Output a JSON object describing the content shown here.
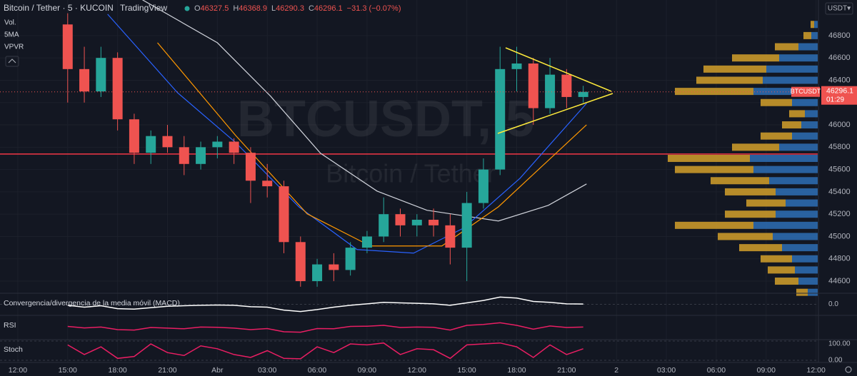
{
  "chart_data": {
    "type": "candlestick",
    "title": "Bitcoin / Tether · 5 · KUCOIN",
    "brand": "TradingView",
    "ohlc": [
      {
        "key": "O",
        "value": 46327.5
      },
      {
        "key": "H",
        "value": 46368.9
      },
      {
        "key": "L",
        "value": 46290.3
      },
      {
        "key": "C",
        "value": 46296.1
      }
    ],
    "change": "−31.3 (−0.07%)",
    "indicator_legend": [
      "Vol.",
      "5MA",
      "VPVR"
    ],
    "watermark": "BTCUSDT, 5",
    "watermark_sub": "Bitcoin / Tether",
    "currency": "USDT▾",
    "symbol_tag": "BTCUSDT",
    "last_price": 46296.1,
    "countdown": "01:29",
    "xlim": [
      -1.07,
      48.1
    ],
    "xticks": [
      {
        "value": 0,
        "label": "12:00"
      },
      {
        "value": 3,
        "label": "15:00"
      },
      {
        "value": 6,
        "label": "18:00"
      },
      {
        "value": 9,
        "label": "21:00"
      },
      {
        "value": 12,
        "label": "Abr"
      },
      {
        "value": 15,
        "label": "03:00"
      },
      {
        "value": 18,
        "label": "06:00"
      },
      {
        "value": 21,
        "label": "09:00"
      },
      {
        "value": 24,
        "label": "12:00"
      },
      {
        "value": 27,
        "label": "15:00"
      },
      {
        "value": 30,
        "label": "18:00"
      },
      {
        "value": 33,
        "label": "21:00"
      },
      {
        "value": 36,
        "label": "2"
      },
      {
        "value": 39,
        "label": "03:00"
      },
      {
        "value": 42,
        "label": "06:00"
      },
      {
        "value": 45,
        "label": "09:00"
      },
      {
        "value": 48,
        "label": "12:00"
      }
    ],
    "ylim": [
      44498,
      47119
    ],
    "yticks": [
      44600,
      44800,
      45000,
      45200,
      45400,
      45600,
      45800,
      46000,
      46200,
      46400,
      46600,
      46800
    ],
    "up_color": "#26a69a",
    "down_color": "#ef5350",
    "x": [
      3,
      4,
      5,
      6,
      7,
      8,
      9,
      10,
      11,
      12,
      13,
      14,
      15,
      16,
      17,
      18,
      19,
      20,
      21,
      22,
      23,
      24,
      25,
      26,
      27,
      28,
      29,
      30,
      31,
      32,
      33,
      34
    ],
    "open": [
      46900,
      46500,
      46300,
      46600,
      46050,
      45750,
      45900,
      45800,
      45650,
      45800,
      45850,
      45750,
      45500,
      45450,
      44950,
      44600,
      44750,
      44700,
      44900,
      45000,
      45200,
      45100,
      45150,
      45100,
      44900,
      45300,
      45600,
      46500,
      46550,
      46150,
      46450,
      46250
    ],
    "high": [
      47000,
      46700,
      46700,
      46650,
      46100,
      45950,
      46000,
      45900,
      45850,
      45900,
      45880,
      45800,
      45650,
      45500,
      45000,
      44800,
      44850,
      44950,
      45050,
      45350,
      45250,
      45200,
      45250,
      45200,
      45400,
      45700,
      46700,
      46700,
      46600,
      46600,
      46500,
      46350
    ],
    "low": [
      46200,
      46200,
      46250,
      45950,
      45650,
      45650,
      45750,
      45550,
      45600,
      45700,
      45650,
      45300,
      45350,
      44850,
      44550,
      44550,
      44600,
      44650,
      44850,
      44950,
      45000,
      45000,
      45000,
      44750,
      44600,
      45250,
      45550,
      46300,
      46000,
      46100,
      46150,
      46200
    ],
    "close": [
      46500,
      46300,
      46600,
      46050,
      45750,
      45900,
      45800,
      45650,
      45800,
      45850,
      45750,
      45500,
      45450,
      44950,
      44600,
      44750,
      44700,
      44900,
      45000,
      45200,
      45100,
      45150,
      45100,
      44900,
      45300,
      45600,
      46500,
      46550,
      46150,
      46450,
      46250,
      46296.1
    ],
    "series": [
      {
        "color": "#d1d4dc",
        "x": [
          7.5,
          12,
          15.2,
          18.2,
          21.6,
          24.6,
          28.9,
          31.9,
          34.2
        ],
        "values": [
          47120,
          46736,
          46257,
          45746,
          45407,
          45235,
          45139,
          45279,
          45471
        ]
      },
      {
        "color": "#2962ff",
        "x": [
          5.4,
          9.6,
          13.1,
          16.9,
          20.4,
          23.8,
          26.8,
          30.2,
          34.2
        ],
        "values": [
          46992,
          46289,
          45842,
          45266,
          44883,
          44851,
          45075,
          45522,
          46193
        ]
      },
      {
        "color": "#ff9800",
        "x": [
          8.4,
          13.1,
          17.4,
          21.2,
          25.5,
          28.9,
          34.2
        ],
        "values": [
          46736,
          45905,
          45203,
          44915,
          44915,
          45266,
          46001
        ]
      }
    ],
    "hline": {
      "value": 45739,
      "color": "#f23645"
    },
    "volume_profile": {
      "levels": [
        44500,
        44600,
        44700,
        44800,
        44900,
        45000,
        45100,
        45200,
        45300,
        45400,
        45500,
        45600,
        45700,
        45800,
        45900,
        46000,
        46100,
        46200,
        46300,
        46400,
        46500,
        46600,
        46700,
        46800,
        46900
      ],
      "up": [
        14,
        27,
        32,
        36,
        50,
        63,
        90,
        59,
        45,
        59,
        68,
        90,
        95,
        54,
        36,
        23,
        18,
        36,
        90,
        77,
        72,
        54,
        27,
        9,
        5
      ],
      "down": [
        16,
        33,
        38,
        44,
        60,
        77,
        110,
        71,
        55,
        71,
        82,
        110,
        115,
        66,
        44,
        27,
        22,
        44,
        110,
        93,
        88,
        66,
        33,
        11,
        5
      ],
      "up_color": "#2e6fb5",
      "down_color": "#d4a02a"
    },
    "indicators": [
      {
        "name": "Convergencia/divergencia de la media móvil (MACD)",
        "color": "#ffffff",
        "ylim": [
          -200,
          200
        ],
        "yticks": [
          {
            "value": 0,
            "label": "0.0"
          }
        ],
        "values": [
          -20,
          -60,
          -30,
          -90,
          -100,
          -70,
          -40,
          -30,
          -20,
          -15,
          -20,
          -50,
          -60,
          -120,
          -150,
          -110,
          -60,
          -20,
          10,
          40,
          30,
          20,
          10,
          -20,
          30,
          80,
          150,
          130,
          60,
          40,
          10,
          5
        ]
      },
      {
        "name": "RSI",
        "color": "#e91e63",
        "ylim": [
          0,
          100
        ],
        "yticks": [],
        "values": [
          55,
          48,
          52,
          40,
          38,
          50,
          47,
          44,
          52,
          51,
          47,
          40,
          45,
          30,
          28,
          45,
          44,
          55,
          56,
          60,
          50,
          52,
          51,
          38,
          60,
          64,
          72,
          60,
          42,
          57,
          50,
          52
        ]
      },
      {
        "name": "Stoch",
        "color": "#e91e63",
        "ylim": [
          0,
          100
        ],
        "yticks": [
          {
            "value": 100,
            "label": "100.00"
          },
          {
            "value": 0,
            "label": "0.00"
          }
        ],
        "values": [
          80,
          30,
          70,
          10,
          20,
          85,
          40,
          25,
          75,
          60,
          30,
          15,
          50,
          10,
          8,
          70,
          40,
          85,
          80,
          90,
          30,
          60,
          55,
          10,
          80,
          85,
          90,
          70,
          15,
          80,
          30,
          60
        ]
      }
    ]
  }
}
